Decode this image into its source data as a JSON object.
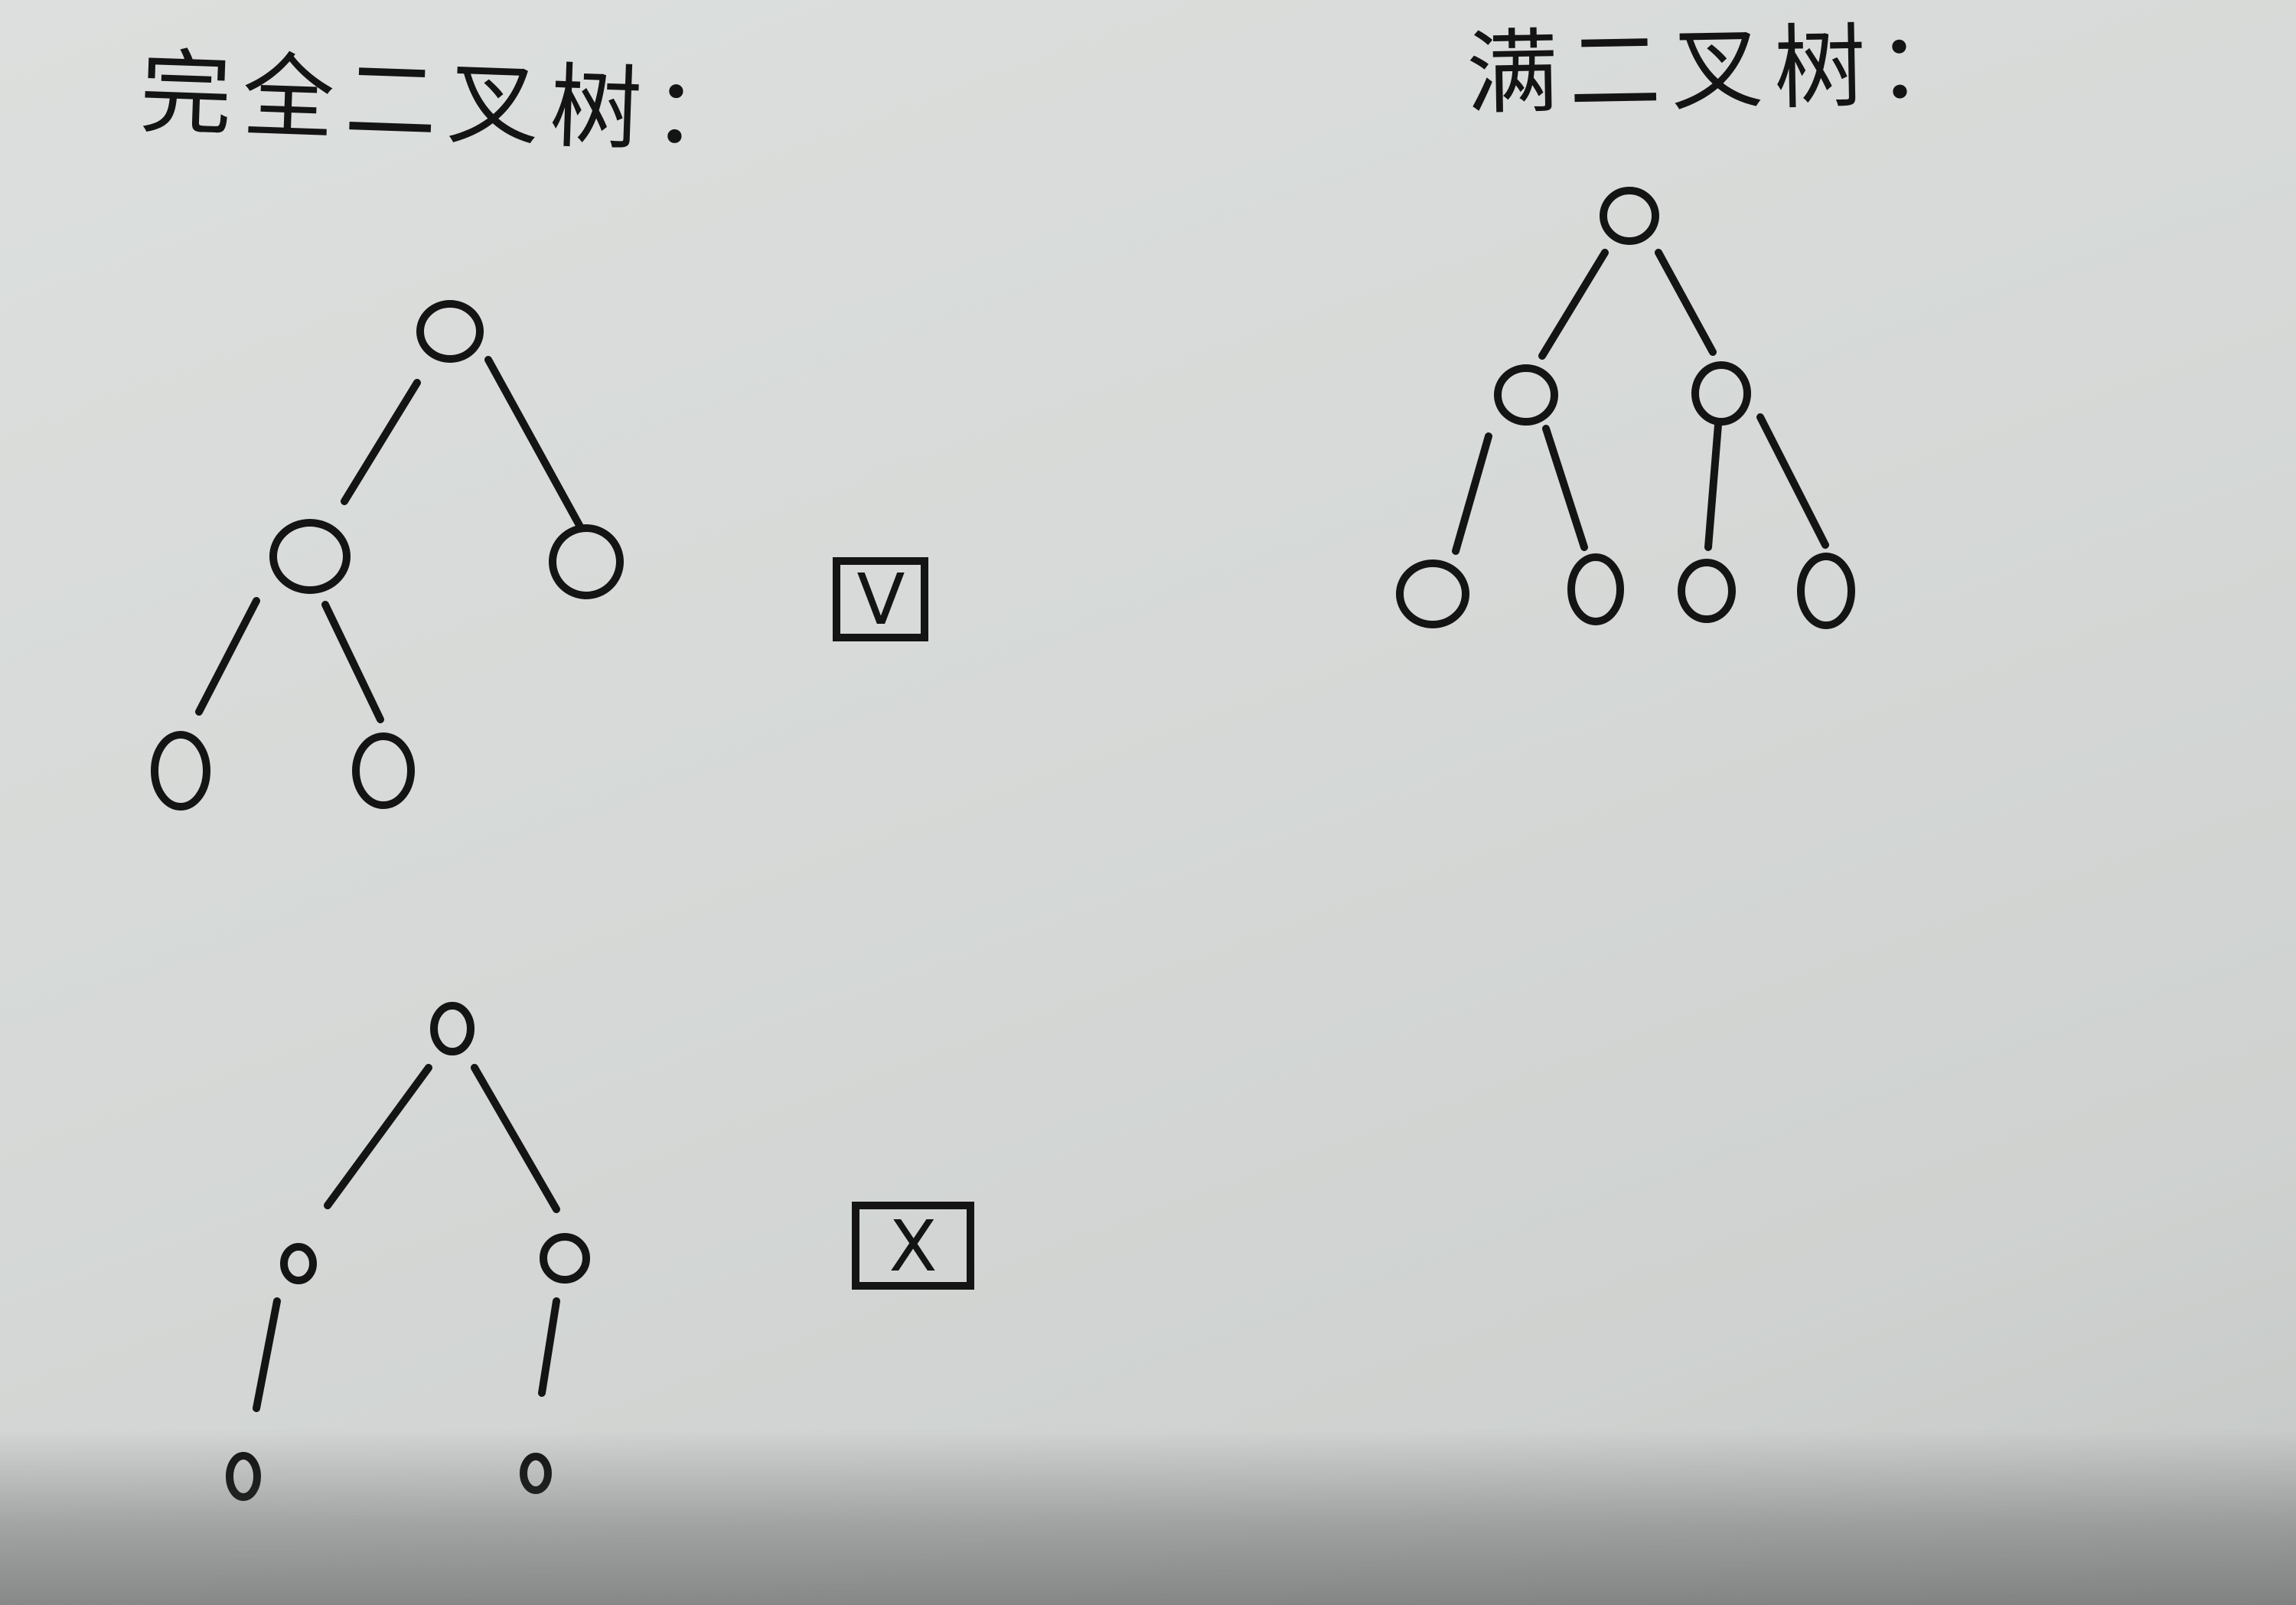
{
  "headings": {
    "complete_binary_tree": "完全二叉树：",
    "full_binary_tree": "满二叉树："
  },
  "marks": {
    "valid": "V",
    "invalid": "X"
  }
}
